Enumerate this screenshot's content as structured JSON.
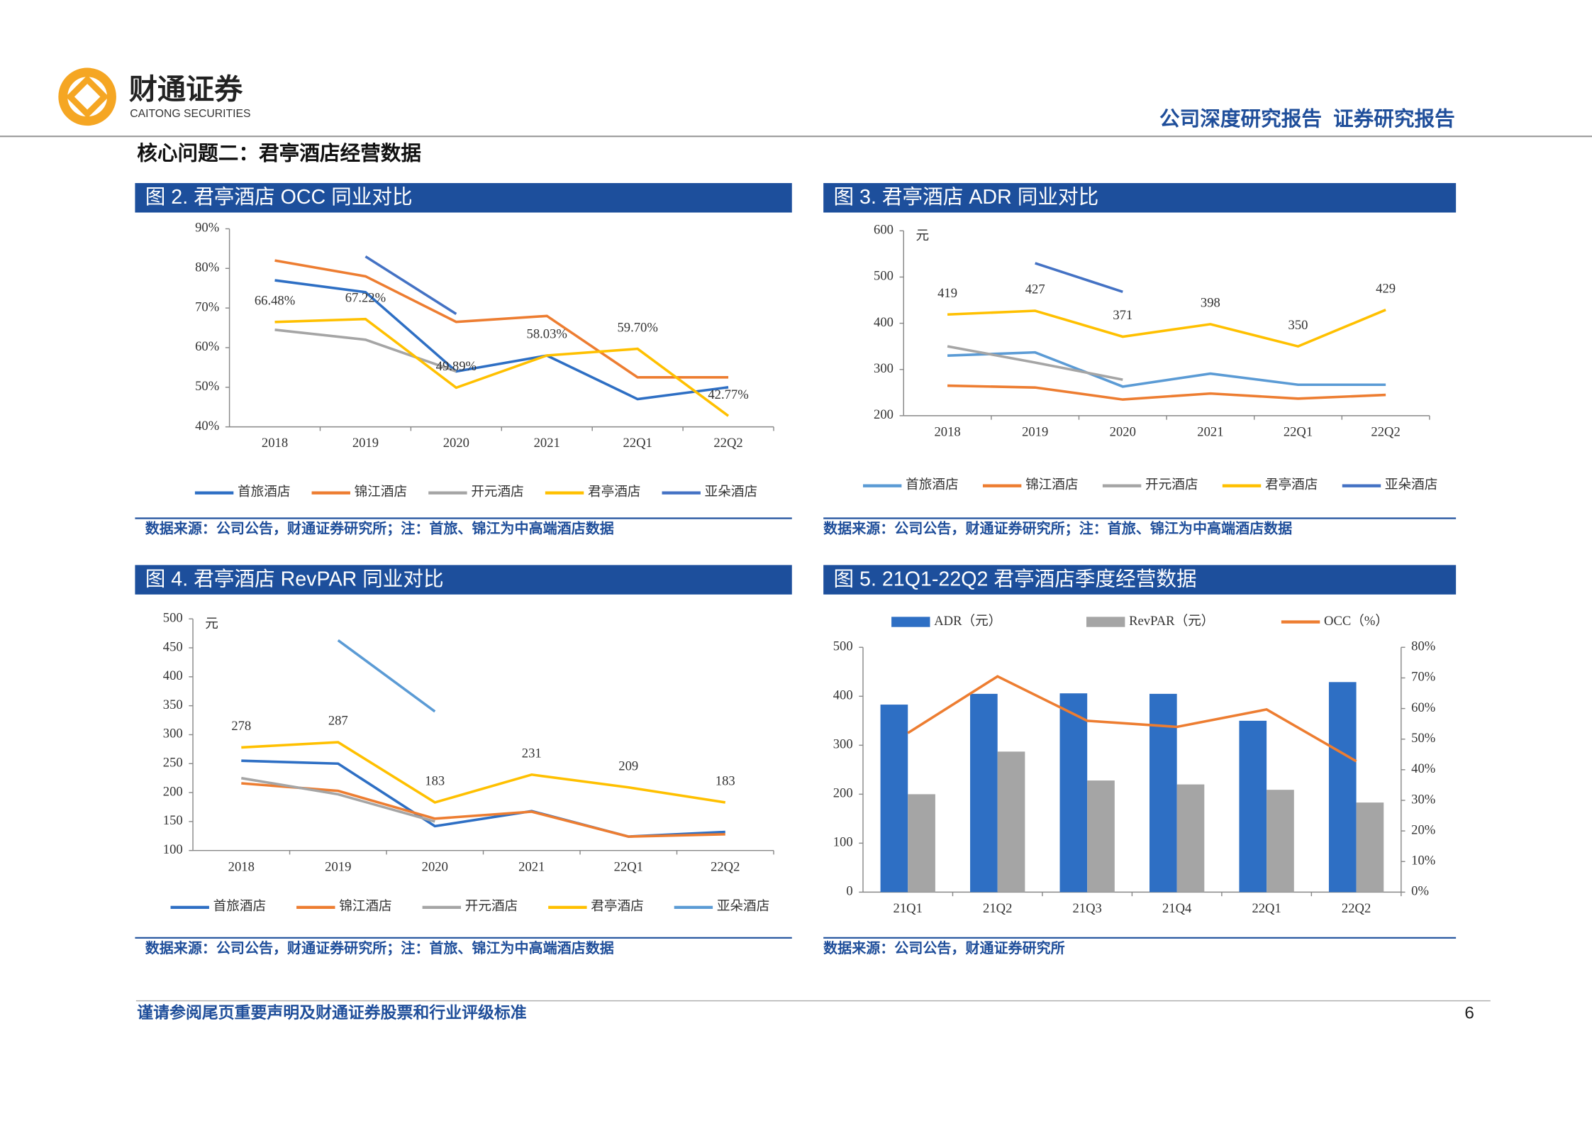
{
  "header": {
    "logo_cn": "财通证券",
    "logo_en": "CAITONG SECURITIES",
    "report_type": "公司深度研究报告  证券研究报告",
    "section_title": "核心问题二：君亭酒店经营数据"
  },
  "chart_data": [
    {
      "type": "line",
      "title": "图 2. 君亭酒店 OCC 同业对比",
      "source": "数据来源：公司公告，财通证券研究所；注：首旅、锦江为中高端酒店数据",
      "categories": [
        "2018",
        "2019",
        "2020",
        "2021",
        "22Q1",
        "22Q2"
      ],
      "ylim": [
        40,
        90
      ],
      "yticks": [
        {
          "value": 40,
          "label": "40%"
        },
        {
          "value": 50,
          "label": "50%"
        },
        {
          "value": 60,
          "label": "60%"
        },
        {
          "value": 70,
          "label": "70%"
        },
        {
          "value": 80,
          "label": "80%"
        },
        {
          "value": 90,
          "label": "90%"
        }
      ],
      "series": [
        {
          "name": "首旅酒店",
          "color": "#2e6fc4",
          "values": [
            77,
            74,
            54,
            58,
            47,
            50
          ]
        },
        {
          "name": "锦江酒店",
          "color": "#ed7d31",
          "values": [
            82,
            78,
            66.5,
            68,
            52.5,
            52.5
          ]
        },
        {
          "name": "开元酒店",
          "color": "#a5a5a5",
          "values": [
            64.5,
            62,
            54,
            null,
            null,
            null
          ]
        },
        {
          "name": "君亭酒店",
          "color": "#ffc000",
          "values": [
            66.48,
            67.22,
            49.89,
            58.03,
            59.7,
            42.77
          ],
          "value_labels": [
            "66.48%",
            "67.22%",
            "49.89%",
            "58.03%",
            "59.70%",
            "42.77%"
          ]
        },
        {
          "name": "亚朵酒店",
          "color": "#4472c4",
          "values": [
            null,
            83,
            68.5,
            null,
            null,
            null
          ]
        }
      ]
    },
    {
      "type": "line",
      "title": "图 3. 君亭酒店 ADR 同业对比",
      "source": "数据来源：公司公告，财通证券研究所；注：首旅、锦江为中高端酒店数据",
      "y_unit": "元",
      "categories": [
        "2018",
        "2019",
        "2020",
        "2021",
        "22Q1",
        "22Q2"
      ],
      "ylim": [
        200,
        600
      ],
      "yticks": [
        200,
        300,
        400,
        500,
        600
      ],
      "series": [
        {
          "name": "首旅酒店",
          "color": "#5b9bd5",
          "values": [
            330,
            337,
            263,
            291,
            267,
            267
          ]
        },
        {
          "name": "锦江酒店",
          "color": "#ed7d31",
          "values": [
            265,
            261,
            235,
            248,
            237,
            245
          ]
        },
        {
          "name": "开元酒店",
          "color": "#a5a5a5",
          "values": [
            350,
            315,
            278,
            null,
            null,
            null
          ]
        },
        {
          "name": "君亭酒店",
          "color": "#ffc000",
          "values": [
            419,
            427,
            371,
            398,
            350,
            429
          ],
          "labeled": true
        },
        {
          "name": "亚朵酒店",
          "color": "#4472c4",
          "values": [
            null,
            530,
            468,
            null,
            null,
            null
          ]
        }
      ]
    },
    {
      "type": "line",
      "title": "图 4. 君亭酒店 RevPAR 同业对比",
      "source": "数据来源：公司公告，财通证券研究所；注：首旅、锦江为中高端酒店数据",
      "y_unit": "元",
      "categories": [
        "2018",
        "2019",
        "2020",
        "2021",
        "22Q1",
        "22Q2"
      ],
      "ylim": [
        100,
        500
      ],
      "yticks": [
        100,
        150,
        200,
        250,
        300,
        350,
        400,
        450,
        500
      ],
      "series": [
        {
          "name": "首旅酒店",
          "color": "#2e6fc4",
          "values": [
            255,
            250,
            142,
            168,
            124,
            132
          ]
        },
        {
          "name": "锦江酒店",
          "color": "#ed7d31",
          "values": [
            216,
            203,
            155,
            167,
            124,
            128
          ]
        },
        {
          "name": "开元酒店",
          "color": "#a5a5a5",
          "values": [
            225,
            197,
            150,
            null,
            null,
            null
          ]
        },
        {
          "name": "君亭酒店",
          "color": "#ffc000",
          "values": [
            278,
            287,
            183,
            231,
            209,
            183
          ],
          "labeled": true
        },
        {
          "name": "亚朵酒店",
          "color": "#5b9bd5",
          "values": [
            null,
            463,
            340,
            null,
            null,
            null
          ]
        }
      ]
    },
    {
      "type": "bar",
      "title": "图 5. 21Q1-22Q2 君亭酒店季度经营数据",
      "source": "数据来源：公司公告，财通证券研究所",
      "categories": [
        "21Q1",
        "21Q2",
        "21Q3",
        "21Q4",
        "22Q1",
        "22Q2"
      ],
      "ylim": [
        0,
        500
      ],
      "yticks": [
        0,
        100,
        200,
        300,
        400,
        500
      ],
      "y2lim": [
        0,
        80
      ],
      "y2ticks": [
        {
          "value": 0,
          "label": "0%"
        },
        {
          "value": 10,
          "label": "10%"
        },
        {
          "value": 20,
          "label": "20%"
        },
        {
          "value": 30,
          "label": "30%"
        },
        {
          "value": 40,
          "label": "40%"
        },
        {
          "value": 50,
          "label": "50%"
        },
        {
          "value": 60,
          "label": "60%"
        },
        {
          "value": 70,
          "label": "70%"
        },
        {
          "value": 80,
          "label": "80%"
        }
      ],
      "series": [
        {
          "name": "ADR（元）",
          "color": "#2e6fc4",
          "type": "bar",
          "values": [
            383,
            405,
            406,
            405,
            350,
            429
          ]
        },
        {
          "name": "RevPAR（元）",
          "color": "#a5a5a5",
          "type": "bar",
          "values": [
            200,
            287,
            228,
            220,
            209,
            183
          ]
        },
        {
          "name": "OCC（%）",
          "color": "#ed7d31",
          "type": "line",
          "axis": "y2",
          "values": [
            52,
            70.5,
            56,
            54,
            59.7,
            42.77
          ]
        }
      ]
    }
  ],
  "footer": {
    "disclaimer": "谨请参阅尾页重要声明及财通证券股票和行业评级标准",
    "page": "6"
  }
}
